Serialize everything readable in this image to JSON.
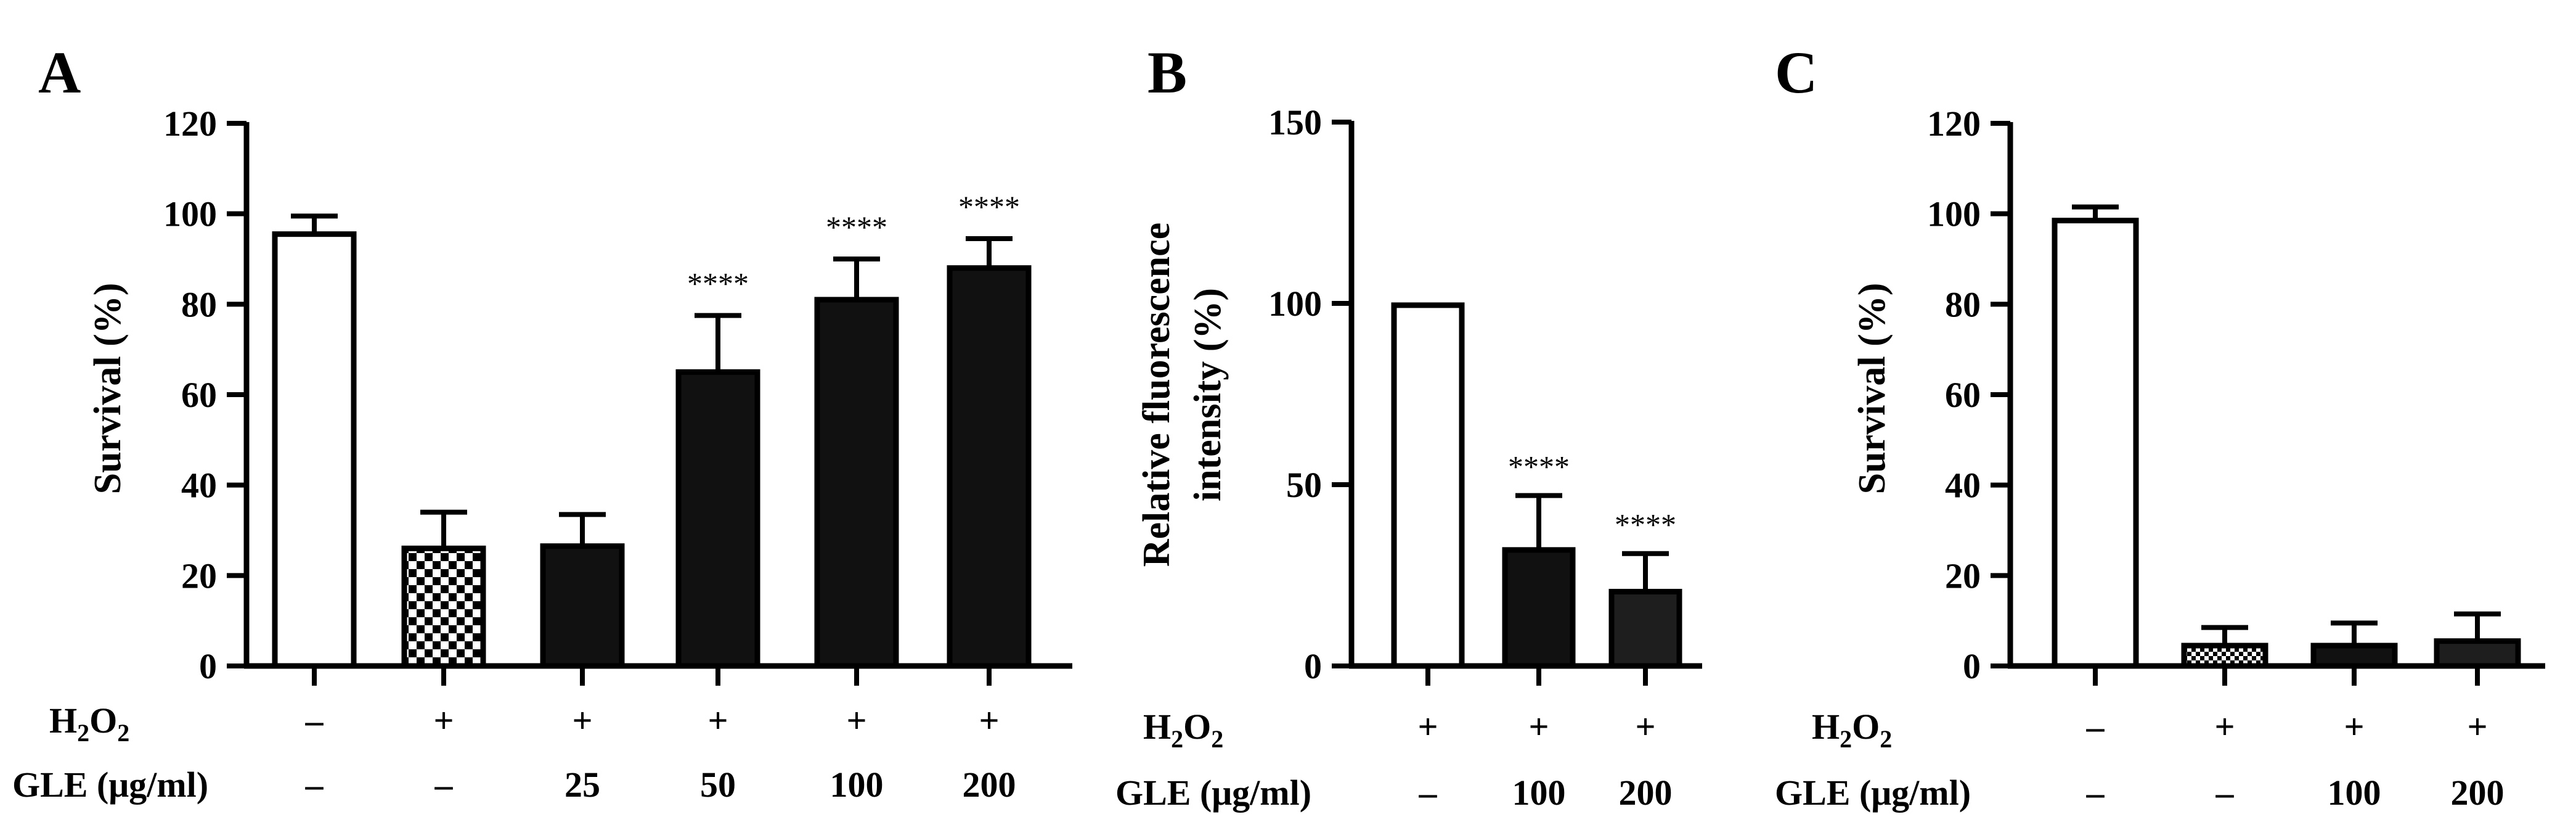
{
  "colors": {
    "ink": "#000000",
    "paper": "#ffffff",
    "dark": "#111111",
    "darker": "#1e1e1e"
  },
  "panels": [
    {
      "letter": "A"
    },
    {
      "letter": "B"
    },
    {
      "letter": "C"
    }
  ],
  "chart_data": [
    {
      "type": "bar",
      "panel": "A",
      "title": "",
      "xlabel": "",
      "ylabel": "Survival (%)",
      "ylim": [
        0,
        120
      ],
      "yticks": [
        0,
        20,
        40,
        60,
        80,
        100,
        120
      ],
      "categories": [
        "control",
        "H2O2",
        "GLE 25",
        "GLE 50",
        "GLE 100",
        "GLE 200"
      ],
      "values": [
        95.5,
        26,
        26.5,
        65,
        81,
        88
      ],
      "errors": [
        4,
        8,
        7,
        12.5,
        9,
        6.5
      ],
      "fills": [
        "white",
        "checker",
        "black",
        "black",
        "black",
        "black"
      ],
      "significance": [
        "",
        "",
        "",
        "****",
        "****",
        "****"
      ],
      "condition_rows": [
        {
          "label_main": "H",
          "label_sub": "2",
          "label_mid": "O",
          "label_sub2": "2",
          "values": [
            "–",
            "+",
            "+",
            "+",
            "+",
            "+"
          ]
        },
        {
          "label": "GLE (μg/ml)",
          "values": [
            "–",
            "–",
            "25",
            "50",
            "100",
            "200"
          ]
        }
      ]
    },
    {
      "type": "bar",
      "panel": "B",
      "title": "",
      "xlabel": "",
      "ylabel_line1": "Relative fluorescence",
      "ylabel_line2": "intensity (%)",
      "ylim": [
        0,
        150
      ],
      "yticks": [
        0,
        50,
        100,
        150
      ],
      "categories": [
        "H2O2",
        "GLE 100",
        "GLE 200"
      ],
      "values": [
        99.5,
        32,
        20.5
      ],
      "errors": [
        0,
        15,
        10.5
      ],
      "fills": [
        "white",
        "black",
        "darkgray"
      ],
      "significance": [
        "",
        "****",
        "****"
      ],
      "condition_rows": [
        {
          "label_main": "H",
          "label_sub": "2",
          "label_mid": "O",
          "label_sub2": "2",
          "values": [
            "+",
            "+",
            "+"
          ]
        },
        {
          "label": "GLE (μg/ml)",
          "values": [
            "–",
            "100",
            "200"
          ]
        }
      ]
    },
    {
      "type": "bar",
      "panel": "C",
      "title": "",
      "xlabel": "",
      "ylabel": "Survival (%)",
      "ylim": [
        0,
        120
      ],
      "yticks": [
        0,
        20,
        40,
        60,
        80,
        100,
        120
      ],
      "categories": [
        "control",
        "H2O2",
        "GLE 100",
        "GLE 200"
      ],
      "values": [
        98.5,
        4.5,
        4.5,
        5.5
      ],
      "errors": [
        3,
        4,
        5,
        6
      ],
      "fills": [
        "white",
        "checker",
        "black",
        "darkgray"
      ],
      "significance": [
        "",
        "",
        "",
        ""
      ],
      "condition_rows": [
        {
          "label_main": "H",
          "label_sub": "2",
          "label_mid": "O",
          "label_sub2": "2",
          "values": [
            "–",
            "+",
            "+",
            "+"
          ]
        },
        {
          "label": "GLE (μg/ml)",
          "values": [
            "–",
            "–",
            "100",
            "200"
          ]
        }
      ]
    }
  ]
}
